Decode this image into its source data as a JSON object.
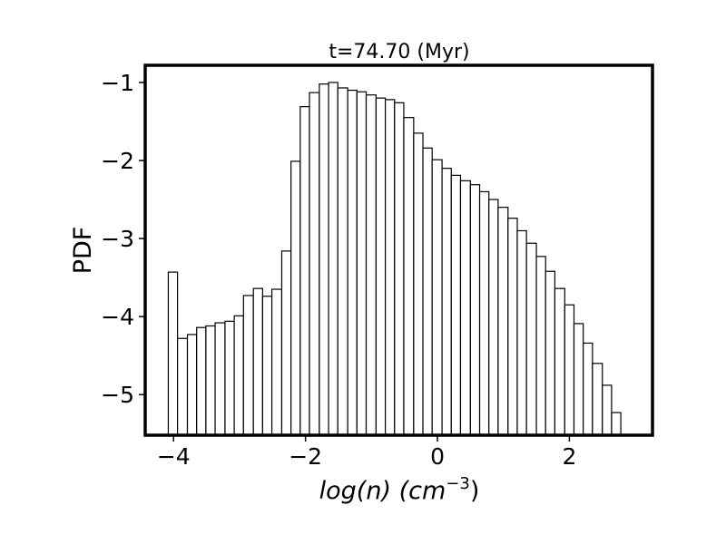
{
  "chart_data": {
    "type": "histogram",
    "title": "t=74.70 (Myr)",
    "xlabel": [
      "log(",
      "n",
      ") (cm",
      "−3",
      ")"
    ],
    "ylabel": "PDF",
    "bins": [
      -4.08,
      -3.94,
      -3.79,
      -3.65,
      -3.51,
      -3.37,
      -3.22,
      -3.08,
      -2.94,
      -2.79,
      -2.65,
      -2.51,
      -2.36,
      -2.22,
      -2.08,
      -1.94,
      -1.79,
      -1.65,
      -1.51,
      -1.36,
      -1.22,
      -1.08,
      -0.93,
      -0.79,
      -0.65,
      -0.51,
      -0.36,
      -0.22,
      -0.08,
      0.07,
      0.21,
      0.35,
      0.5,
      0.64,
      0.78,
      0.92,
      1.07,
      1.21,
      1.35,
      1.5,
      1.64,
      1.78,
      1.93,
      2.07,
      2.21,
      2.35,
      2.5,
      2.64,
      2.78
    ],
    "values": [
      -3.43,
      -4.28,
      -4.23,
      -4.14,
      -4.12,
      -4.08,
      -4.06,
      -3.99,
      -3.73,
      -3.64,
      -3.74,
      -3.65,
      -3.16,
      -2.01,
      -1.31,
      -1.13,
      -1.02,
      -1.0,
      -1.07,
      -1.1,
      -1.12,
      -1.16,
      -1.2,
      -1.22,
      -1.26,
      -1.45,
      -1.65,
      -1.84,
      -1.99,
      -2.1,
      -2.19,
      -2.26,
      -2.31,
      -2.4,
      -2.5,
      -2.6,
      -2.74,
      -2.9,
      -3.06,
      -3.23,
      -3.42,
      -3.64,
      -3.85,
      -4.09,
      -4.34,
      -4.6,
      -4.88,
      -5.23
    ],
    "color": "#ffffff",
    "edgecolor": "#000000",
    "xlim": [
      -4.43,
      3.26
    ],
    "ylim": [
      -5.52,
      -0.78
    ],
    "xticks": [
      {
        "value": -4,
        "label": "−4"
      },
      {
        "value": -2,
        "label": "−2"
      },
      0,
      2
    ],
    "yticks": [
      {
        "value": -1,
        "label": "−1"
      },
      {
        "value": -2,
        "label": "−2"
      },
      {
        "value": -3,
        "label": "−3"
      },
      {
        "value": -4,
        "label": "−4"
      },
      {
        "value": -5,
        "label": "−5"
      }
    ],
    "grid": false
  }
}
